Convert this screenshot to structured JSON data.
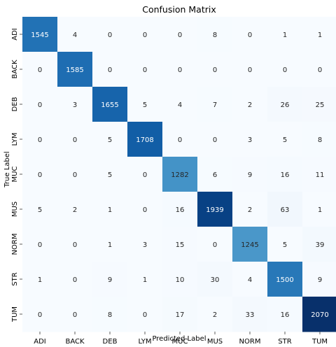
{
  "chart_data": {
    "type": "heatmap",
    "title": "Confusion Matrix",
    "xlabel": "Predicted Label",
    "ylabel": "True Label",
    "x_categories": [
      "ADI",
      "BACK",
      "DEB",
      "LYM",
      "MUC",
      "MUS",
      "NORM",
      "STR",
      "TUM"
    ],
    "y_categories": [
      "ADI",
      "BACK",
      "DEB",
      "LYM",
      "MUC",
      "MUS",
      "NORM",
      "STR",
      "TUM"
    ],
    "values": [
      [
        1545,
        4,
        0,
        0,
        0,
        8,
        0,
        1,
        1
      ],
      [
        0,
        1585,
        0,
        0,
        0,
        0,
        0,
        0,
        0
      ],
      [
        0,
        3,
        1655,
        5,
        4,
        7,
        2,
        26,
        25
      ],
      [
        0,
        0,
        5,
        1708,
        0,
        0,
        3,
        5,
        8
      ],
      [
        0,
        0,
        5,
        0,
        1282,
        6,
        9,
        16,
        11
      ],
      [
        5,
        2,
        1,
        0,
        16,
        1939,
        2,
        63,
        1
      ],
      [
        0,
        0,
        1,
        3,
        15,
        0,
        1245,
        5,
        39
      ],
      [
        1,
        0,
        9,
        1,
        10,
        30,
        4,
        1500,
        9
      ],
      [
        0,
        0,
        8,
        0,
        17,
        2,
        33,
        16,
        2070
      ]
    ],
    "value_range": [
      0,
      2070
    ],
    "colormap": "Blues",
    "colorbar": false
  }
}
